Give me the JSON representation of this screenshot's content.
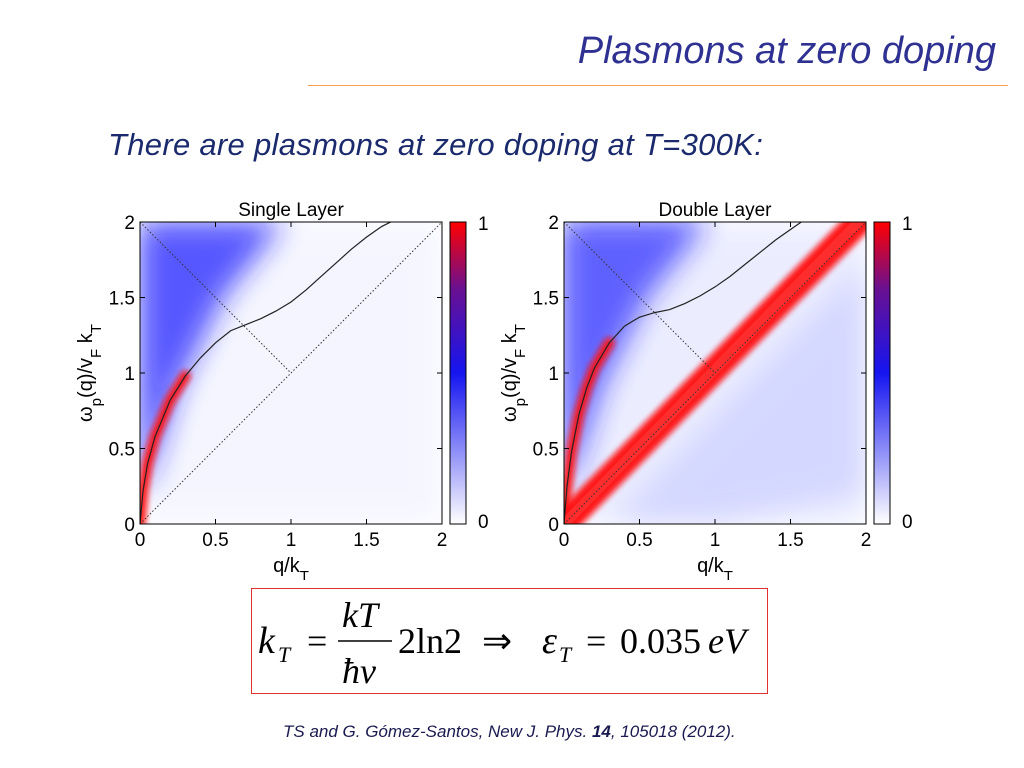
{
  "slide": {
    "title": "Plasmons at zero doping",
    "subtitle": "There are plasmons at zero doping at T=300K:"
  },
  "chart_data": [
    {
      "type": "heatmap",
      "title": "Single Layer",
      "xlabel": "q/k_T",
      "ylabel": "ω_p(q)/v_F k_T",
      "xlim": [
        0,
        2
      ],
      "ylim": [
        0,
        2
      ],
      "xticks": [
        "0",
        "0.5",
        "1",
        "1.5",
        "2"
      ],
      "yticks": [
        "0",
        "0.5",
        "1",
        "1.5",
        "2"
      ],
      "colorbar": {
        "min_label": "0",
        "max_label": "1",
        "colors": [
          "#ffffff",
          "#1515f0",
          "#ff0000"
        ]
      },
      "plasmon_curve": {
        "x": [
          0,
          0.02,
          0.05,
          0.1,
          0.2,
          0.3,
          0.4,
          0.5,
          0.6,
          0.7,
          0.8,
          0.9,
          1.0,
          1.1,
          1.2,
          1.3,
          1.4,
          1.5,
          1.6,
          1.7
        ],
        "y": [
          0,
          0.22,
          0.4,
          0.58,
          0.82,
          0.98,
          1.1,
          1.2,
          1.28,
          1.32,
          1.36,
          1.41,
          1.47,
          1.55,
          1.64,
          1.73,
          1.82,
          1.9,
          1.97,
          2.02
        ]
      },
      "dotted_lines": [
        {
          "label": "ω = v_F q",
          "x": [
            0,
            2
          ],
          "y": [
            0,
            2
          ]
        },
        {
          "label": "ω = 2 k_T − v_F q",
          "x": [
            0,
            1
          ],
          "y": [
            2,
            1
          ]
        }
      ]
    },
    {
      "type": "heatmap",
      "title": "Double Layer",
      "xlabel": "q/k_T",
      "ylabel": "ω_p(q)/v_F k_T",
      "xlim": [
        0,
        2
      ],
      "ylim": [
        0,
        2
      ],
      "xticks": [
        "0",
        "0.5",
        "1",
        "1.5",
        "2"
      ],
      "yticks": [
        "0",
        "0.5",
        "1",
        "1.5",
        "2"
      ],
      "colorbar": {
        "min_label": "0",
        "max_label": "1",
        "colors": [
          "#ffffff",
          "#1515f0",
          "#ff0000"
        ]
      },
      "plasmon_curve": {
        "x": [
          0,
          0.02,
          0.05,
          0.1,
          0.15,
          0.2,
          0.3,
          0.4,
          0.5,
          0.6,
          0.7,
          0.8,
          0.9,
          1.0,
          1.1,
          1.2,
          1.3,
          1.4,
          1.5,
          1.6
        ],
        "y": [
          0,
          0.25,
          0.48,
          0.73,
          0.9,
          1.03,
          1.2,
          1.31,
          1.37,
          1.4,
          1.42,
          1.46,
          1.51,
          1.57,
          1.64,
          1.72,
          1.8,
          1.88,
          1.95,
          2.02
        ]
      },
      "acoustic_mode": {
        "x": [
          0,
          2
        ],
        "y": [
          0,
          2.05
        ]
      },
      "dotted_lines": [
        {
          "label": "ω = v_F q",
          "x": [
            0,
            2
          ],
          "y": [
            0,
            2
          ]
        },
        {
          "label": "ω = 2 k_T − v_F q",
          "x": [
            0,
            1
          ],
          "y": [
            2,
            1
          ]
        }
      ]
    }
  ],
  "formula": {
    "lhs_symbol": "k",
    "lhs_sub": "T",
    "equals": "=",
    "numerator": "kT",
    "denominator": "ħv",
    "factor": "2ln2",
    "implies": "⇒",
    "rhs_symbol": "ε",
    "rhs_sub": "T",
    "rhs_value": "0.035",
    "rhs_unit": "eV"
  },
  "citation": {
    "authors": "TS and G. Gómez-Santos, New J. Phys. ",
    "volume": "14",
    "pages": ", 105018 (2012)."
  },
  "colors": {
    "title": "#2e3192",
    "rule": "#f0a050",
    "box_border": "#e03030"
  }
}
